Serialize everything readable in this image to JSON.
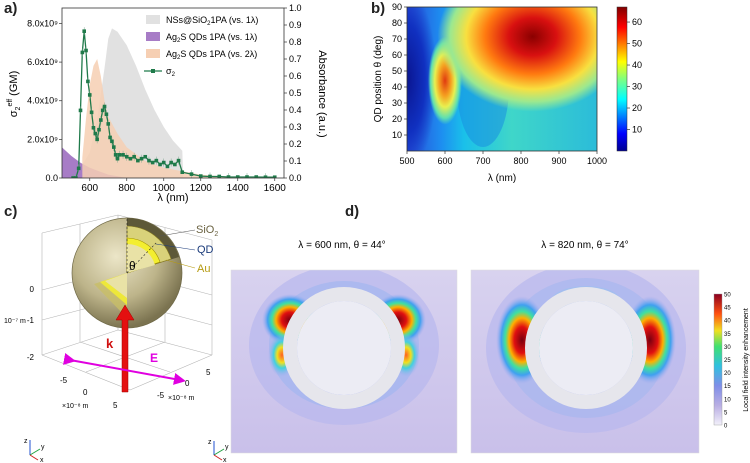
{
  "panels": {
    "a": "a)",
    "b": "b)",
    "c": "c)",
    "d": "d)"
  },
  "chart_data": [
    {
      "type": "line",
      "panel": "a",
      "xlabel": "λ (nm)",
      "ylabel_left": "σ2eff (GM)",
      "ylabel_right": "Absorbance (a.u.)",
      "xlim": [
        450,
        1650
      ],
      "ylim_left": [
        0,
        8800000000.0
      ],
      "ylim_right": [
        0,
        1.0
      ],
      "x_ticks": [
        600,
        800,
        1000,
        1200,
        1400,
        1600
      ],
      "y_left_ticks": [
        "0.0",
        "2.0x10⁹",
        "4.0x10⁹",
        "6.0x10⁹",
        "8.0x10⁹"
      ],
      "y_left_tick_values": [
        0,
        2000000000.0,
        4000000000.0,
        6000000000.0,
        8000000000.0
      ],
      "y_right_ticks": [
        "0.0",
        "0.1",
        "0.2",
        "0.3",
        "0.4",
        "0.5",
        "0.6",
        "0.7",
        "0.8",
        "0.9",
        "1.0"
      ],
      "legend": [
        {
          "label": "NSs@SiO",
          "sub": "2",
          "suffix": "1PA (vs. 1λ)",
          "color": "#e1e1e1",
          "kind": "area"
        },
        {
          "label": "Ag",
          "sub": "2",
          "suffix": "S QDs 1PA (vs. 1λ)",
          "color": "#a77cc6",
          "kind": "area"
        },
        {
          "label": "Ag",
          "sub": "2",
          "suffix": "S QDs 1PA (vs. 2λ)",
          "color": "#f6cfb3",
          "kind": "area"
        },
        {
          "label": "σ",
          "sub": "2",
          "suffix": "",
          "color": "#1f7a4a",
          "kind": "line"
        }
      ],
      "series": [
        {
          "name": "NSs@SiO2 1PA (vs. 1λ)",
          "axis": "right",
          "color": "#e1e1e1",
          "x": [
            450,
            500,
            550,
            600,
            640,
            680,
            700,
            720,
            750,
            800,
            850,
            900,
            950,
            1000,
            1050,
            1100,
            1105
          ],
          "y": [
            0.02,
            0.03,
            0.06,
            0.15,
            0.35,
            0.65,
            0.82,
            0.88,
            0.86,
            0.78,
            0.66,
            0.52,
            0.4,
            0.3,
            0.22,
            0.16,
            0
          ]
        },
        {
          "name": "Ag2S QDs 1PA (vs. 1λ)",
          "axis": "right",
          "color": "#a77cc6",
          "x": [
            450,
            500,
            550,
            600,
            650,
            700,
            750,
            800
          ],
          "y": [
            0.18,
            0.13,
            0.09,
            0.06,
            0.04,
            0.02,
            0.01,
            0.0
          ]
        },
        {
          "name": "Ag2S QDs 1PA (vs. 2λ)",
          "axis": "right",
          "color": "#f6cfb3",
          "x": [
            560,
            580,
            600,
            620,
            640,
            660,
            680,
            700,
            750,
            800,
            900,
            1000,
            1100,
            1200,
            1300,
            1400,
            1600
          ],
          "y": [
            0.12,
            0.35,
            0.55,
            0.66,
            0.7,
            0.6,
            0.45,
            0.36,
            0.26,
            0.18,
            0.1,
            0.06,
            0.04,
            0.02,
            0.01,
            0.0,
            0.0
          ]
        },
        {
          "name": "σ2",
          "axis": "left",
          "color": "#1f7a4a",
          "x": [
            510,
            525,
            540,
            550,
            560,
            570,
            580,
            590,
            600,
            610,
            620,
            630,
            640,
            650,
            660,
            670,
            680,
            690,
            700,
            710,
            720,
            730,
            740,
            750,
            760,
            780,
            800,
            820,
            840,
            860,
            880,
            900,
            920,
            940,
            960,
            980,
            1000,
            1020,
            1040,
            1060,
            1080,
            1100,
            1150,
            1200,
            1250,
            1300,
            1350,
            1400,
            1450,
            1500,
            1550,
            1600
          ],
          "y": [
            0.0,
            0.0,
            500000000.0,
            3500000000.0,
            6500000000.0,
            7600000000.0,
            6600000000.0,
            5000000000.0,
            4300000000.0,
            3400000000.0,
            2600000000.0,
            2300000000.0,
            2000000000.0,
            2500000000.0,
            3000000000.0,
            3500000000.0,
            3700000000.0,
            3300000000.0,
            2800000000.0,
            2100000000.0,
            1900000000.0,
            1600000000.0,
            1200000000.0,
            1000000000.0,
            1200000000.0,
            1200000000.0,
            1100000000.0,
            1000000000.0,
            1100000000.0,
            900000000.0,
            1000000000.0,
            1100000000.0,
            900000000.0,
            800000000.0,
            900000000.0,
            700000000.0,
            800000000.0,
            600000000.0,
            800000000.0,
            700000000.0,
            900000000.0,
            300000000.0,
            200000000.0,
            100000000.0,
            80000000.0,
            80000000.0,
            50000000.0,
            50000000.0,
            50000000.0,
            50000000.0,
            40000000.0,
            40000000.0
          ]
        }
      ]
    },
    {
      "type": "heatmap",
      "panel": "b",
      "xlabel": "λ (nm)",
      "ylabel": "QD position θ (deg)",
      "xlim": [
        500,
        1000
      ],
      "ylim": [
        0,
        90
      ],
      "x_ticks": [
        500,
        600,
        700,
        800,
        900,
        1000
      ],
      "y_ticks": [
        10,
        20,
        30,
        40,
        50,
        60,
        70,
        80,
        90
      ],
      "colorbar_ticks": [
        10,
        20,
        30,
        40,
        50,
        60
      ],
      "colorbar_range": [
        0,
        67
      ],
      "hotspots": [
        {
          "lambda": 600,
          "theta": 44,
          "value": 45
        },
        {
          "lambda": 820,
          "theta": 74,
          "value": 67
        }
      ]
    }
  ],
  "panel_c": {
    "labels": {
      "sio2": "SiO",
      "sio2_sub": "2",
      "qd": "QD",
      "au": "Au",
      "theta": "θ",
      "k": "k",
      "e": "E"
    },
    "z_ticks": [
      "0",
      "-1",
      "-2"
    ],
    "z_unit": "10⁻⁷ m",
    "x_ticks": [
      "-5",
      "0",
      "5"
    ],
    "x_unit": "×10⁻⁸ m",
    "y_ticks": [
      "5",
      "0",
      "-5"
    ],
    "y_unit": "×10⁻⁸ m",
    "axes": {
      "z": "z",
      "y": "y",
      "x": "x"
    }
  },
  "panel_d": {
    "left_title": "λ = 600 nm, θ = 44°",
    "right_title": "λ = 820 nm, θ = 74°",
    "colorbar_label": "Local field intensity enhancement",
    "colorbar_ticks": [
      "50",
      "45",
      "40",
      "35",
      "30",
      "25",
      "20",
      "15",
      "10",
      "5",
      "0"
    ],
    "axes": {
      "z": "z",
      "y": "y",
      "x": "x"
    }
  }
}
